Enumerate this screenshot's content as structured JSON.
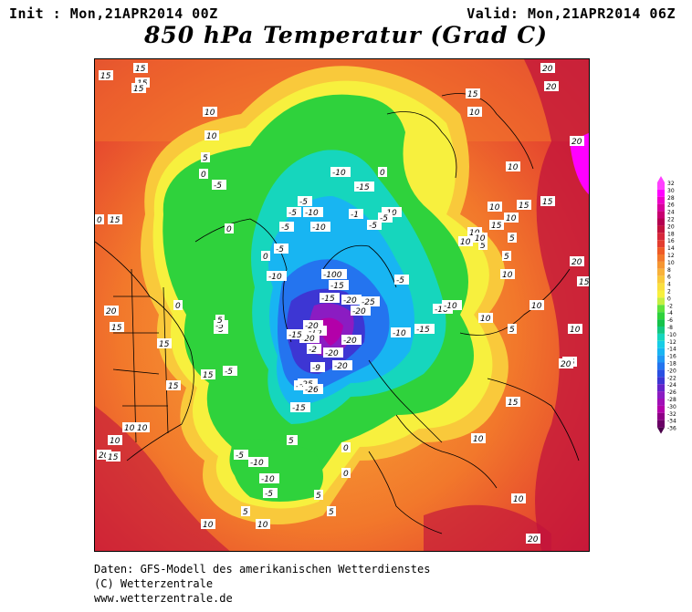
{
  "header": {
    "init": "Init : Mon,21APR2014 00Z",
    "valid": "Valid: Mon,21APR2014 06Z",
    "title": "850 hPa Temperatur (Grad C)"
  },
  "legend": {
    "levels": [
      "32",
      "30",
      "28",
      "26",
      "24",
      "22",
      "20",
      "18",
      "16",
      "14",
      "12",
      "10",
      "8",
      "6",
      "4",
      "2",
      "0",
      "-2",
      "-4",
      "-6",
      "-8",
      "-10",
      "-12",
      "-14",
      "-16",
      "-18",
      "-20",
      "-22",
      "-24",
      "-26",
      "-28",
      "-30",
      "-32",
      "-34",
      "-36"
    ],
    "colors": [
      "#ff40ff",
      "#ff00ff",
      "#ee00c8",
      "#d8009c",
      "#c80070",
      "#b5004f",
      "#c2133c",
      "#d6273a",
      "#e33d2f",
      "#ef5b26",
      "#f2782b",
      "#f59632",
      "#f8b23a",
      "#f9c93b",
      "#fadf3f",
      "#f7f03e",
      "#c5ef42",
      "#5fe23d",
      "#2fd23c",
      "#15c24b",
      "#14c882",
      "#16d6bd",
      "#17cde6",
      "#18b5f2",
      "#2098f4",
      "#2474ef",
      "#2a4fe2",
      "#3d36d3",
      "#6524c9",
      "#8b1cc2",
      "#a10fb6",
      "#b300a9",
      "#8d0086",
      "#6a0066"
    ]
  },
  "map_labels": [
    {
      "t": "15"
    },
    {
      "t": "15"
    },
    {
      "t": "15"
    },
    {
      "t": "15"
    },
    {
      "t": "20"
    },
    {
      "t": "20"
    },
    {
      "t": "15"
    },
    {
      "t": "10"
    },
    {
      "t": "10"
    },
    {
      "t": "10"
    },
    {
      "t": "20"
    },
    {
      "t": "10"
    },
    {
      "t": "15"
    },
    {
      "t": "5"
    },
    {
      "t": "0"
    },
    {
      "t": "0"
    },
    {
      "t": "-5"
    },
    {
      "t": "0"
    },
    {
      "t": "-5"
    },
    {
      "t": "-10"
    },
    {
      "t": "-15"
    },
    {
      "t": "-5"
    },
    {
      "t": "-10"
    },
    {
      "t": "-5"
    },
    {
      "t": "-10"
    },
    {
      "t": "-1"
    },
    {
      "t": "-5"
    },
    {
      "t": "-10"
    },
    {
      "t": "-5"
    },
    {
      "t": "15"
    },
    {
      "t": "0"
    },
    {
      "t": "-5"
    },
    {
      "t": "0"
    },
    {
      "t": "-5"
    },
    {
      "t": "-10"
    },
    {
      "t": "-100"
    },
    {
      "t": "-15"
    },
    {
      "t": "-15"
    },
    {
      "t": "-20"
    },
    {
      "t": "-25"
    },
    {
      "t": "-20"
    },
    {
      "t": "-5"
    },
    {
      "t": "-10"
    },
    {
      "t": "-15"
    },
    {
      "t": "-16"
    },
    {
      "t": "-10"
    },
    {
      "t": "-15"
    },
    {
      "t": "-20"
    },
    {
      "t": "-20"
    },
    {
      "t": "-15"
    },
    {
      "t": "-20"
    },
    {
      "t": "-2"
    },
    {
      "t": "-20"
    },
    {
      "t": "-9"
    },
    {
      "t": "-20"
    },
    {
      "t": "-20"
    },
    {
      "t": "-25"
    },
    {
      "t": "-26"
    },
    {
      "t": "-15"
    },
    {
      "t": "-5"
    },
    {
      "t": "-5"
    },
    {
      "t": "-10"
    },
    {
      "t": "-10"
    },
    {
      "t": "-5"
    },
    {
      "t": "0"
    },
    {
      "t": "0"
    },
    {
      "t": "5"
    },
    {
      "t": "5"
    },
    {
      "t": "10"
    },
    {
      "t": "10"
    },
    {
      "t": "15"
    },
    {
      "t": "15"
    },
    {
      "t": "20"
    },
    {
      "t": "15"
    },
    {
      "t": "10"
    },
    {
      "t": "10"
    },
    {
      "t": "15"
    },
    {
      "t": "20"
    },
    {
      "t": "15"
    },
    {
      "t": "10"
    },
    {
      "t": "5"
    },
    {
      "t": "10"
    },
    {
      "t": "10"
    },
    {
      "t": "15"
    },
    {
      "t": "10"
    },
    {
      "t": "10"
    },
    {
      "t": "20"
    },
    {
      "t": "15"
    },
    {
      "t": "15"
    },
    {
      "t": "10"
    },
    {
      "t": "10"
    },
    {
      "t": "15"
    },
    {
      "t": "10"
    },
    {
      "t": "5"
    },
    {
      "t": "5"
    },
    {
      "t": "5"
    },
    {
      "t": "10"
    },
    {
      "t": "10"
    },
    {
      "t": "10"
    },
    {
      "t": "10"
    },
    {
      "t": "15"
    },
    {
      "t": "20"
    },
    {
      "t": "20"
    },
    {
      "t": "5"
    },
    {
      "t": "0"
    },
    {
      "t": "5"
    },
    {
      "t": "-5"
    },
    {
      "t": "5"
    },
    {
      "t": "0"
    }
  ],
  "footer": {
    "line1": "Daten: GFS-Modell des amerikanischen Wetterdienstes",
    "line2": "(C) Wetterzentrale",
    "line3": "www.wetterzentrale.de"
  }
}
